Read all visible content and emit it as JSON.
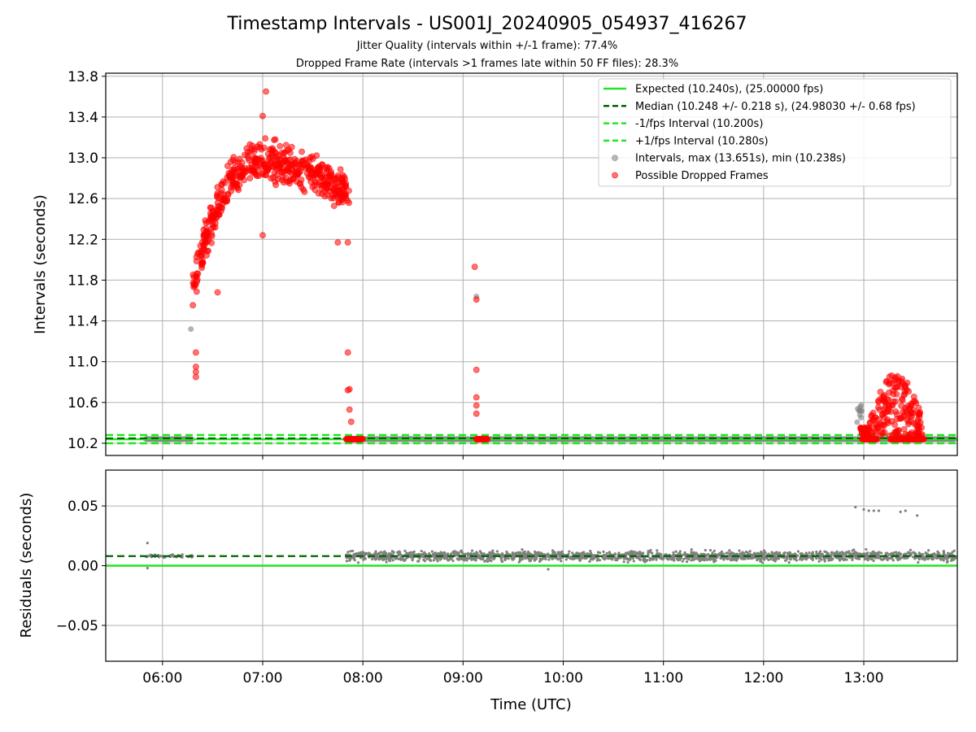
{
  "figure": {
    "title": "Timestamp Intervals - US001J_20240905_054937_416267",
    "subtitle1": "Jitter Quality (intervals within +/-1 frame): 77.4%",
    "subtitle2": "Dropped Frame Rate (intervals >1 frames late within 50 FF files): 28.3%"
  },
  "colors": {
    "expected": "#22e622",
    "median": "#006400",
    "interval_band": "#22e622",
    "intervals": "#808080",
    "dropped": "#ff0000",
    "grid": "#b0b0b0"
  },
  "chart_data": [
    {
      "type": "scatter",
      "ylabel": "Intervals (seconds)",
      "xlabel": "",
      "x_units": "time (UTC, HH:MM)",
      "xlim": [
        "05:26",
        "13:56"
      ],
      "ylim": [
        10.08,
        13.83
      ],
      "x_ticks": [
        "06:00",
        "07:00",
        "08:00",
        "09:00",
        "10:00",
        "11:00",
        "12:00",
        "13:00"
      ],
      "y_ticks": [
        "10.2",
        "10.6",
        "11.0",
        "11.4",
        "11.8",
        "12.2",
        "12.6",
        "13.0",
        "13.4",
        "13.8"
      ],
      "grid": true,
      "legend_position": "top-right",
      "lines": [
        {
          "name": "Expected (10.240s), (25.00000 fps)",
          "y": 10.24,
          "style": "solid"
        },
        {
          "name": "Median (10.248 +/- 0.218 s), (24.98030 +/- 0.68 fps)",
          "y": 10.248,
          "style": "dashed"
        },
        {
          "name": "-1/fps Interval (10.200s)",
          "y": 10.2,
          "style": "dashed"
        },
        {
          "name": "+1/fps Interval (10.280s)",
          "y": 10.28,
          "style": "dashed"
        }
      ],
      "series": [
        {
          "name": "Intervals, max (13.651s), min (10.238s)",
          "max": 13.651,
          "min": 10.238,
          "clusters": [
            {
              "from": "05:50",
              "to": "06:18",
              "y": 10.24
            },
            {
              "from": "06:17",
              "to": "06:17",
              "y": 11.32
            },
            {
              "from": "07:52",
              "to": "13:55",
              "y": 10.24
            },
            {
              "from": "09:08",
              "to": "09:08",
              "y": 11.64
            },
            {
              "from": "12:56",
              "to": "12:58",
              "y_range": [
                10.38,
                10.58
              ]
            }
          ]
        },
        {
          "name": "Possible Dropped Frames",
          "arc_region": {
            "from": "06:18",
            "to": "07:52",
            "peak_time": "07:00",
            "peak_y": 12.95,
            "start_y": 11.7,
            "end_y": 12.65
          },
          "outliers": [
            {
              "x": "06:20",
              "y": 11.09
            },
            {
              "x": "06:20",
              "y": 10.95
            },
            {
              "x": "06:20",
              "y": 10.9
            },
            {
              "x": "06:20",
              "y": 10.85
            },
            {
              "x": "06:33",
              "y": 11.68
            },
            {
              "x": "07:00",
              "y": 13.41
            },
            {
              "x": "07:02",
              "y": 13.65
            },
            {
              "x": "07:00",
              "y": 12.24
            },
            {
              "x": "07:51",
              "y": 11.09
            },
            {
              "x": "07:51",
              "y": 10.72
            },
            {
              "x": "07:52",
              "y": 10.73
            },
            {
              "x": "07:52",
              "y": 10.53
            },
            {
              "x": "07:53",
              "y": 10.41
            },
            {
              "x": "07:51",
              "y": 12.17
            },
            {
              "x": "07:45",
              "y": 12.17
            },
            {
              "x": "09:07",
              "y": 11.93
            },
            {
              "x": "09:08",
              "y": 11.61
            },
            {
              "x": "09:08",
              "y": 10.92
            },
            {
              "x": "09:08",
              "y": 10.65
            },
            {
              "x": "09:08",
              "y": 10.57
            },
            {
              "x": "09:08",
              "y": 10.49
            }
          ],
          "baseline_runs": [
            {
              "from": "07:50",
              "to": "08:00",
              "y": 10.24
            },
            {
              "from": "09:08",
              "to": "09:15",
              "y": 10.24
            },
            {
              "from": "12:59",
              "to": "13:08",
              "y": 10.24
            },
            {
              "from": "13:16",
              "to": "13:36",
              "y": 10.24
            }
          ],
          "cluster_region": {
            "from": "12:58",
            "to": "13:35",
            "y_range": [
              10.26,
              10.89
            ]
          }
        }
      ]
    },
    {
      "type": "scatter",
      "ylabel": "Residuals (seconds)",
      "xlabel": "Time (UTC)",
      "xlim": [
        "05:26",
        "13:56"
      ],
      "ylim": [
        -0.08,
        0.08
      ],
      "x_ticks": [
        "06:00",
        "07:00",
        "08:00",
        "09:00",
        "10:00",
        "11:00",
        "12:00",
        "13:00"
      ],
      "y_ticks": [
        "0.05",
        "0.00",
        "−0.05"
      ],
      "grid": true,
      "lines": [
        {
          "name": "expected",
          "y": 0.0,
          "style": "solid"
        },
        {
          "name": "median",
          "y": 0.008,
          "style": "dashed"
        }
      ],
      "series": [
        {
          "name": "residuals",
          "segments": [
            {
              "from": "05:50",
              "to": "06:18",
              "center": 0.008,
              "spread": 0.002
            },
            {
              "from": "07:50",
              "to": "13:56",
              "center": 0.008,
              "spread": 0.006
            }
          ],
          "outliers": [
            {
              "x": "05:51",
              "y": 0.019
            },
            {
              "x": "05:51",
              "y": -0.002
            },
            {
              "x": "09:51",
              "y": -0.003
            },
            {
              "x": "12:55",
              "y": 0.049
            },
            {
              "x": "13:00",
              "y": 0.047
            },
            {
              "x": "13:03",
              "y": 0.046
            },
            {
              "x": "13:06",
              "y": 0.046
            },
            {
              "x": "13:09",
              "y": 0.046
            },
            {
              "x": "13:22",
              "y": 0.045
            },
            {
              "x": "13:25",
              "y": 0.046
            },
            {
              "x": "13:32",
              "y": 0.042
            }
          ]
        }
      ]
    }
  ]
}
